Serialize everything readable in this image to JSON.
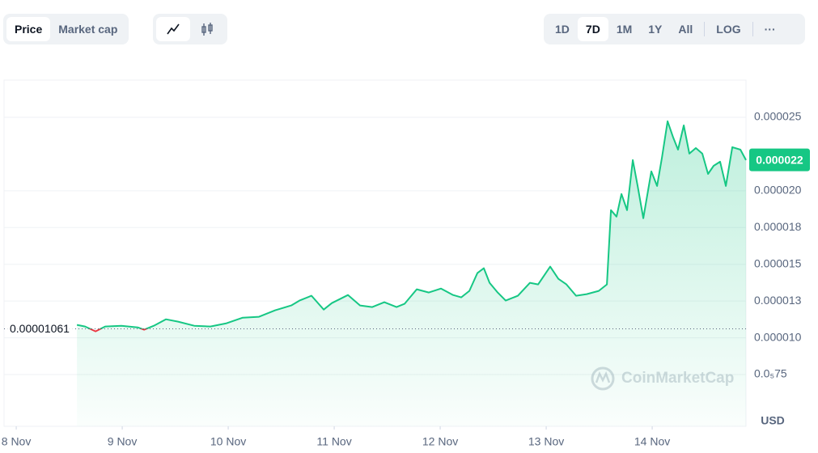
{
  "toolbar": {
    "metrics": [
      "Price",
      "Market cap"
    ],
    "ranges": [
      "1D",
      "7D",
      "1M",
      "1Y",
      "All"
    ],
    "scale": "LOG",
    "more": "···"
  },
  "chart_data": {
    "type": "line",
    "xlim": [
      -0.115,
      6.885
    ],
    "xticks": [
      {
        "value": 0,
        "label": "8 Nov"
      },
      {
        "value": 1,
        "label": "9 Nov"
      },
      {
        "value": 2,
        "label": "10 Nov"
      },
      {
        "value": 3,
        "label": "11 Nov"
      },
      {
        "value": 4,
        "label": "12 Nov"
      },
      {
        "value": 5,
        "label": "13 Nov"
      },
      {
        "value": 6,
        "label": "14 Nov"
      }
    ],
    "ylim": [
      3.98e-06,
      2.753e-05
    ],
    "yticks": [
      {
        "value": 7.5e-06,
        "label": "0.0₅75"
      },
      {
        "value": 1e-05,
        "label": "0.000010"
      },
      {
        "value": 1.25e-05,
        "label": "0.000013"
      },
      {
        "value": 1.5e-05,
        "label": "0.000015"
      },
      {
        "value": 1.75e-05,
        "label": "0.000018"
      },
      {
        "value": 2e-05,
        "label": "0.000020"
      },
      {
        "value": 2.5e-05,
        "label": "0.000025"
      }
    ],
    "grid": true,
    "y_axis_label": "USD",
    "watermark": "CoinMarketCap",
    "reference": {
      "value": 1.061e-05,
      "label": "0.00001061",
      "color_below": "#ea3943"
    },
    "last_price": {
      "value": 2.21e-05,
      "label": "0.000022"
    },
    "series": [
      {
        "name": "Price",
        "color": "#16c784",
        "x": [
          0.573,
          0.649,
          0.748,
          0.84,
          0.992,
          1.145,
          1.206,
          1.298,
          1.412,
          1.527,
          1.679,
          1.832,
          1.985,
          2.137,
          2.29,
          2.443,
          2.595,
          2.672,
          2.786,
          2.901,
          2.977,
          3.13,
          3.244,
          3.359,
          3.473,
          3.588,
          3.664,
          3.779,
          3.893,
          4.008,
          4.122,
          4.198,
          4.275,
          4.351,
          4.412,
          4.466,
          4.542,
          4.618,
          4.733,
          4.847,
          4.924,
          5.038,
          5.115,
          5.191,
          5.282,
          5.382,
          5.496,
          5.573,
          5.611,
          5.664,
          5.71,
          5.763,
          5.817,
          5.863,
          5.916,
          5.992,
          6.046,
          6.092,
          6.145,
          6.198,
          6.244,
          6.298,
          6.351,
          6.412,
          6.473,
          6.527,
          6.58,
          6.641,
          6.695,
          6.756,
          6.832,
          6.885
        ],
        "values": [
          1.088e-05,
          1.077e-05,
          1.044e-05,
          1.077e-05,
          1.082e-05,
          1.071e-05,
          1.055e-05,
          1.082e-05,
          1.126e-05,
          1.11e-05,
          1.082e-05,
          1.077e-05,
          1.099e-05,
          1.137e-05,
          1.143e-05,
          1.187e-05,
          1.22e-05,
          1.253e-05,
          1.286e-05,
          1.192e-05,
          1.236e-05,
          1.291e-05,
          1.22e-05,
          1.209e-05,
          1.242e-05,
          1.209e-05,
          1.231e-05,
          1.33e-05,
          1.308e-05,
          1.335e-05,
          1.291e-05,
          1.275e-05,
          1.319e-05,
          1.44e-05,
          1.473e-05,
          1.374e-05,
          1.308e-05,
          1.253e-05,
          1.286e-05,
          1.374e-05,
          1.363e-05,
          1.484e-05,
          1.401e-05,
          1.363e-05,
          1.286e-05,
          1.297e-05,
          1.319e-05,
          1.363e-05,
          1.868e-05,
          1.824e-05,
          1.978e-05,
          1.868e-05,
          2.209e-05,
          2.033e-05,
          1.813e-05,
          2.132e-05,
          2.033e-05,
          2.225e-05,
          2.473e-05,
          2.363e-05,
          2.28e-05,
          2.445e-05,
          2.253e-05,
          2.291e-05,
          2.253e-05,
          2.115e-05,
          2.17e-05,
          2.198e-05,
          2.033e-05,
          2.297e-05,
          2.28e-05,
          2.209e-05
        ]
      }
    ]
  }
}
